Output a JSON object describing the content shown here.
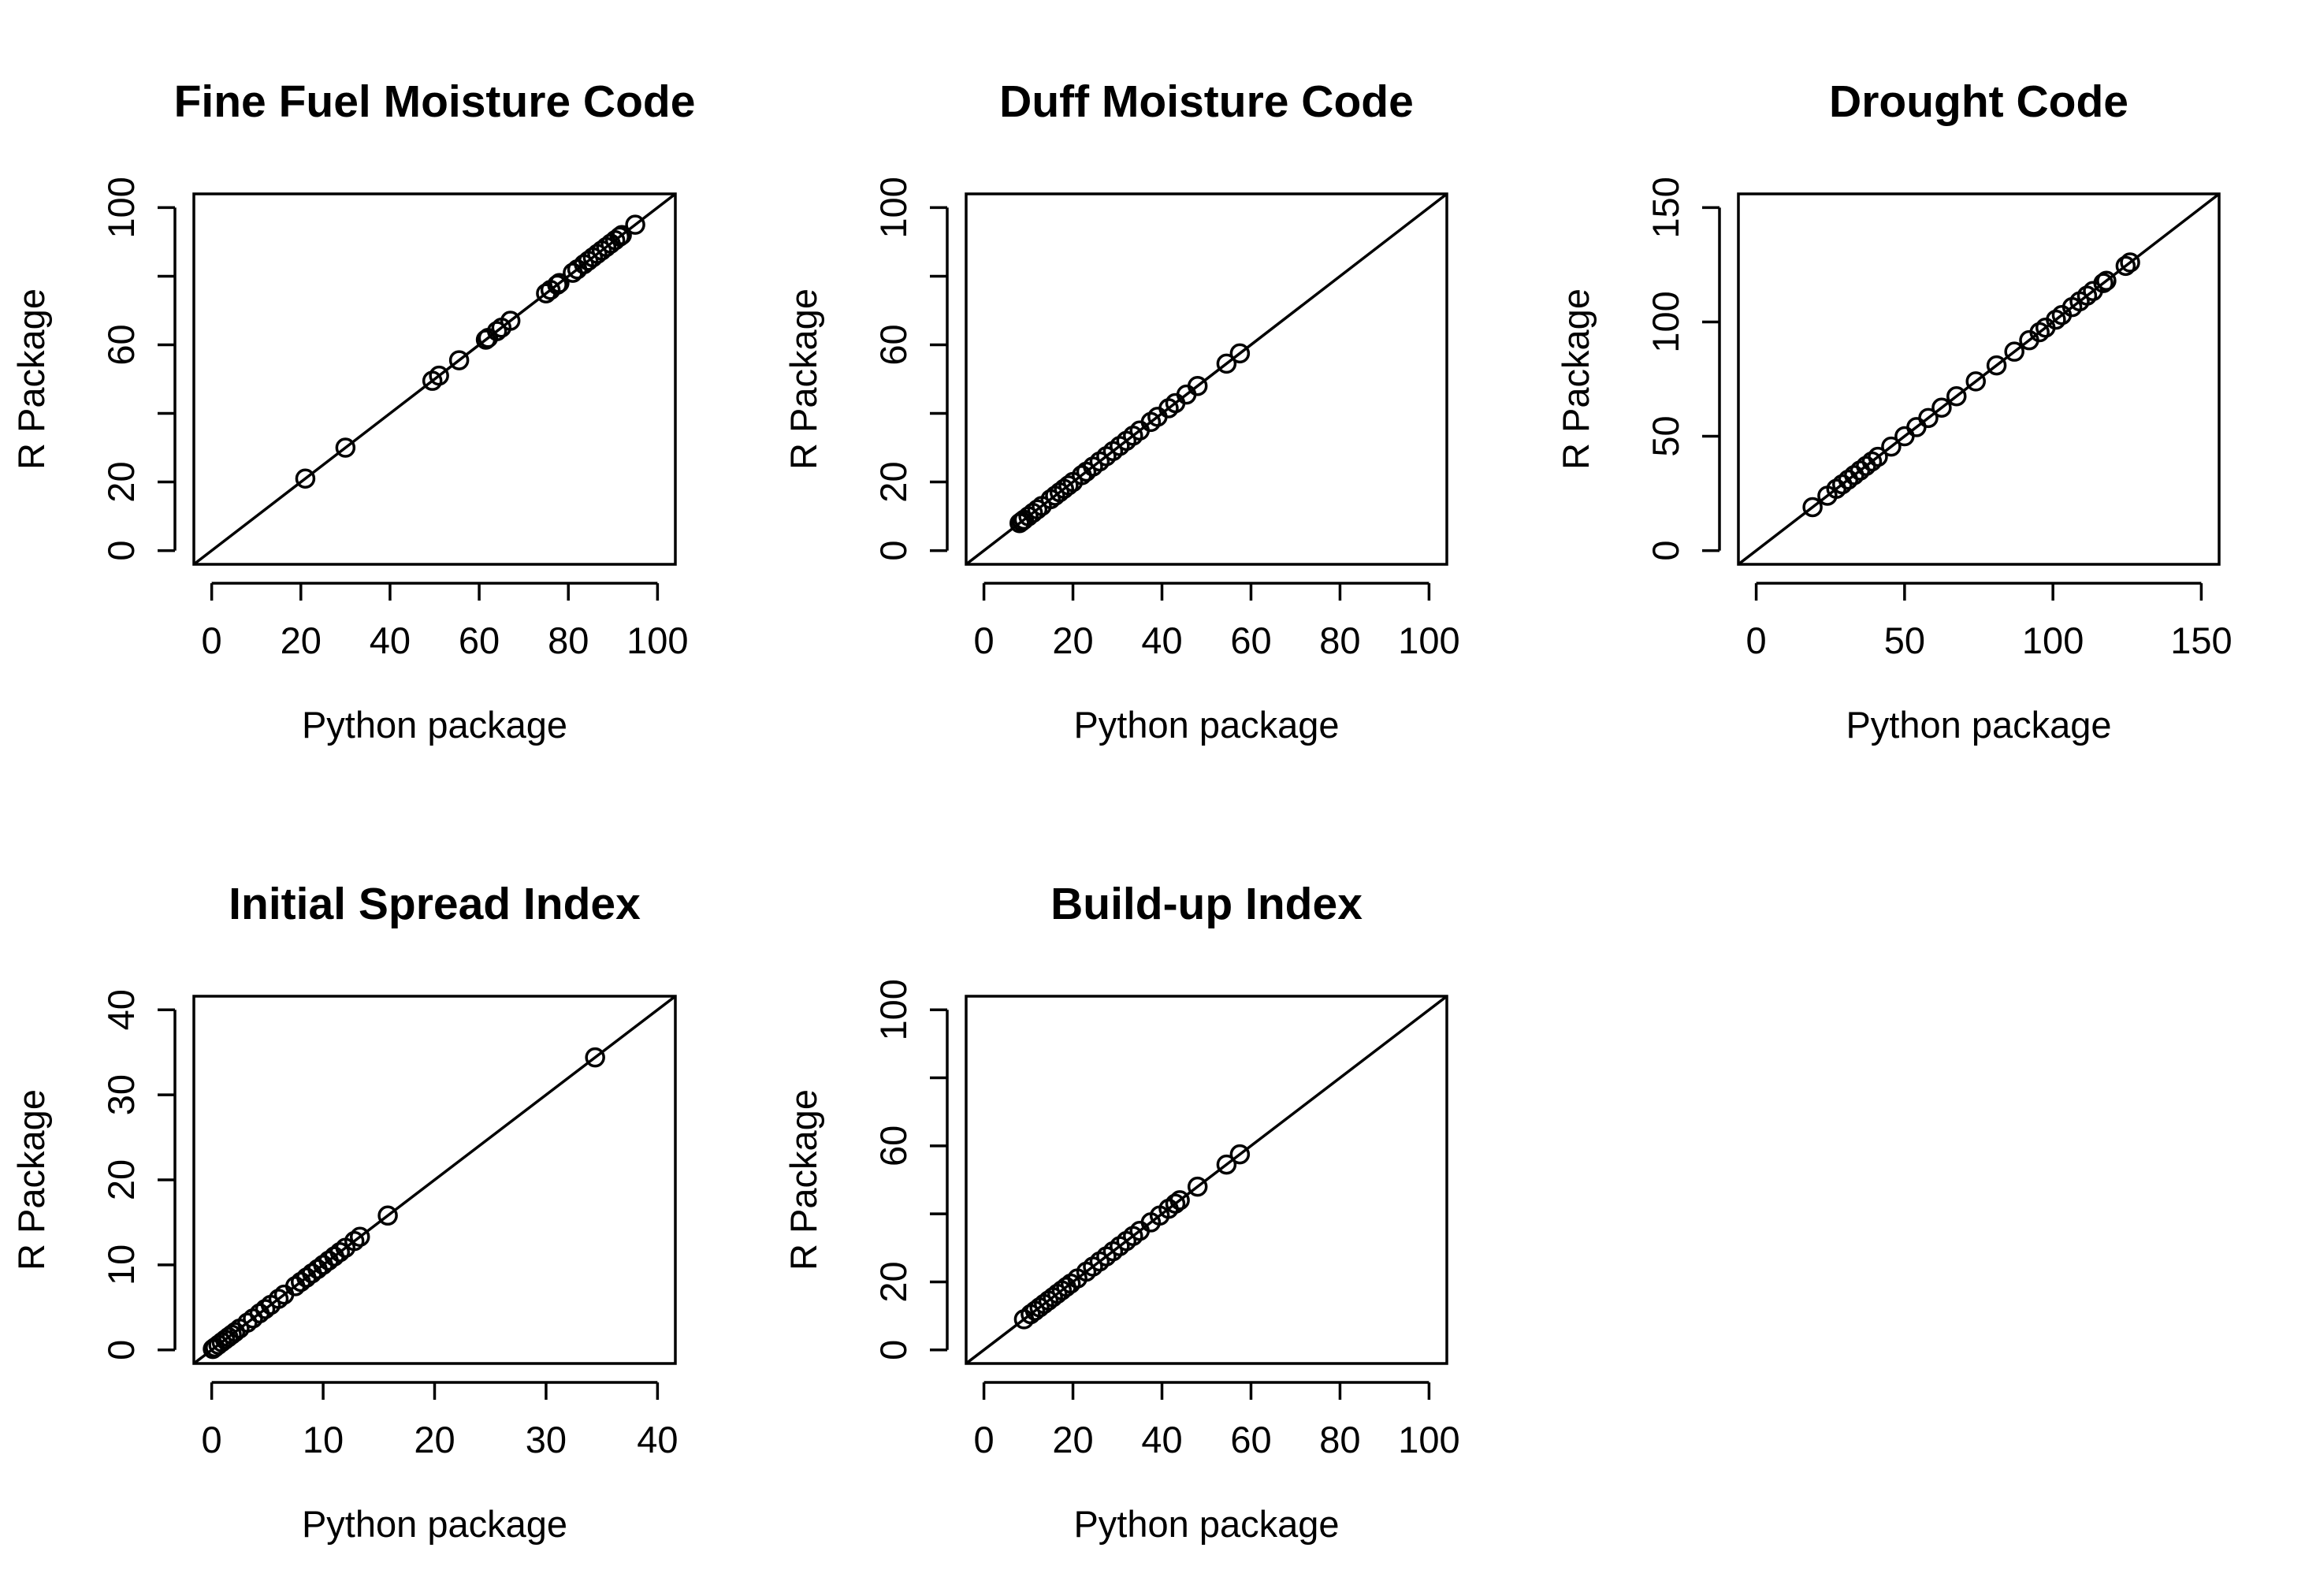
{
  "chart_data": [
    {
      "type": "scatter",
      "title": "Fine Fuel Moisture Code",
      "xlabel": "Python package",
      "ylabel": "R Package",
      "xlim": [
        0,
        100
      ],
      "ylim": [
        0,
        100
      ],
      "xticks": [
        0,
        20,
        40,
        60,
        80,
        100
      ],
      "yticks": [
        0,
        20,
        40,
        60,
        80,
        100
      ],
      "yticklabels": [
        "0",
        "20",
        "",
        "60",
        "",
        "100"
      ],
      "reference_line": "y = x",
      "grid": false,
      "x": [
        21,
        30,
        49.5,
        51,
        55.5,
        61.5,
        62,
        64,
        65,
        67,
        75,
        76,
        77.5,
        78,
        81,
        82,
        83.5,
        84.5,
        85.5,
        86.5,
        87.5,
        88.5,
        89.5,
        90.5,
        91.5,
        92,
        95
      ],
      "y": [
        21,
        30,
        49.5,
        51,
        55.5,
        61.5,
        62,
        64,
        65,
        67,
        75,
        76,
        77.5,
        78,
        81,
        82,
        83.5,
        84.5,
        85.5,
        86.5,
        87.5,
        88.5,
        89.5,
        90.5,
        91.5,
        92,
        95
      ]
    },
    {
      "type": "scatter",
      "title": "Duff Moisture Code",
      "xlabel": "Python package",
      "ylabel": "R Package",
      "xlim": [
        0,
        100
      ],
      "ylim": [
        0,
        100
      ],
      "xticks": [
        0,
        20,
        40,
        60,
        80,
        100
      ],
      "yticks": [
        0,
        20,
        40,
        60,
        80,
        100
      ],
      "yticklabels": [
        "0",
        "20",
        "",
        "60",
        "",
        "100"
      ],
      "reference_line": "y = x",
      "grid": false,
      "x": [
        8,
        8.5,
        9,
        10,
        11,
        12,
        13,
        15,
        16,
        17,
        18,
        19,
        20,
        22,
        23,
        24.5,
        26,
        27.5,
        29,
        30.5,
        32,
        33.5,
        35,
        37.5,
        39,
        41.5,
        43,
        45.5,
        48,
        54.5,
        57.5
      ],
      "y": [
        8,
        8.5,
        9,
        10,
        11,
        12,
        13,
        15,
        16,
        17,
        18,
        19,
        20,
        22,
        23,
        24.5,
        26,
        27.5,
        29,
        30.5,
        32,
        33.5,
        35,
        37.5,
        39,
        41.5,
        43,
        45.5,
        48,
        54.5,
        57.5
      ]
    },
    {
      "type": "scatter",
      "title": "Drought Code",
      "xlabel": "Python package",
      "ylabel": "R Package",
      "xlim": [
        0,
        150
      ],
      "ylim": [
        0,
        150
      ],
      "xticks": [
        0,
        50,
        100,
        150
      ],
      "yticks": [
        0,
        50,
        100,
        150
      ],
      "yticklabels": [
        "0",
        "50",
        "100",
        "150"
      ],
      "reference_line": "y = x",
      "grid": false,
      "x": [
        19,
        24,
        27,
        29,
        31,
        33,
        35,
        37,
        39,
        41,
        45.5,
        50,
        54,
        58,
        62.5,
        67.5,
        74,
        81,
        87,
        92,
        95.5,
        97.5,
        101,
        103,
        106.5,
        109,
        111.5,
        113.5,
        117,
        118,
        124.5,
        126
      ],
      "y": [
        19,
        24,
        27,
        29,
        31,
        33,
        35,
        37,
        39,
        41,
        45.5,
        50,
        54,
        58,
        62.5,
        67.5,
        74,
        81,
        87,
        92,
        95.5,
        97.5,
        101,
        103,
        106.5,
        109,
        111.5,
        113.5,
        117,
        118,
        124.5,
        126
      ]
    },
    {
      "type": "scatter",
      "title": "Initial Spread Index",
      "xlabel": "Python package",
      "ylabel": "R Package",
      "xlim": [
        0,
        40
      ],
      "ylim": [
        0,
        40
      ],
      "xticks": [
        0,
        10,
        20,
        30,
        40
      ],
      "yticks": [
        0,
        10,
        20,
        30,
        40
      ],
      "yticklabels": [
        "0",
        "10",
        "20",
        "30",
        "40"
      ],
      "reference_line": "y = x",
      "grid": false,
      "x": [
        0.1,
        0.3,
        0.6,
        0.9,
        1.2,
        1.5,
        1.8,
        2.1,
        2.5,
        3.2,
        3.7,
        4.3,
        4.8,
        5.3,
        6.0,
        6.5,
        7.5,
        8.0,
        8.5,
        9.0,
        9.5,
        10.0,
        10.5,
        11.0,
        11.5,
        12.0,
        12.8,
        13.3,
        15.8,
        34.4
      ],
      "y": [
        0.1,
        0.3,
        0.6,
        0.9,
        1.2,
        1.5,
        1.8,
        2.1,
        2.5,
        3.2,
        3.7,
        4.3,
        4.8,
        5.3,
        6.0,
        6.5,
        7.5,
        8.0,
        8.5,
        9.0,
        9.5,
        10.0,
        10.5,
        11.0,
        11.5,
        12.0,
        12.8,
        13.3,
        15.8,
        34.4
      ]
    },
    {
      "type": "scatter",
      "title": "Build-up Index",
      "xlabel": "Python package",
      "ylabel": "R Package",
      "xlim": [
        0,
        100
      ],
      "ylim": [
        0,
        100
      ],
      "xticks": [
        0,
        20,
        40,
        60,
        80,
        100
      ],
      "yticks": [
        0,
        20,
        40,
        60,
        80,
        100
      ],
      "yticklabels": [
        "0",
        "20",
        "",
        "60",
        "",
        "100"
      ],
      "reference_line": "y = x",
      "grid": false,
      "x": [
        9,
        10.5,
        11.5,
        12.5,
        13.5,
        14.5,
        15.5,
        16.5,
        17.5,
        18.5,
        19.5,
        21,
        23,
        24.5,
        26,
        27.5,
        29,
        30.5,
        32,
        33.5,
        35,
        37.5,
        39.5,
        41.5,
        43,
        44,
        48,
        54.5,
        57.5
      ],
      "y": [
        9,
        10.5,
        11.5,
        12.5,
        13.5,
        14.5,
        15.5,
        16.5,
        17.5,
        18.5,
        19.5,
        21,
        23,
        24.5,
        26,
        27.5,
        29,
        30.5,
        32,
        33.5,
        35,
        37.5,
        39.5,
        41.5,
        43,
        44,
        48,
        54.5,
        57.5
      ]
    }
  ]
}
